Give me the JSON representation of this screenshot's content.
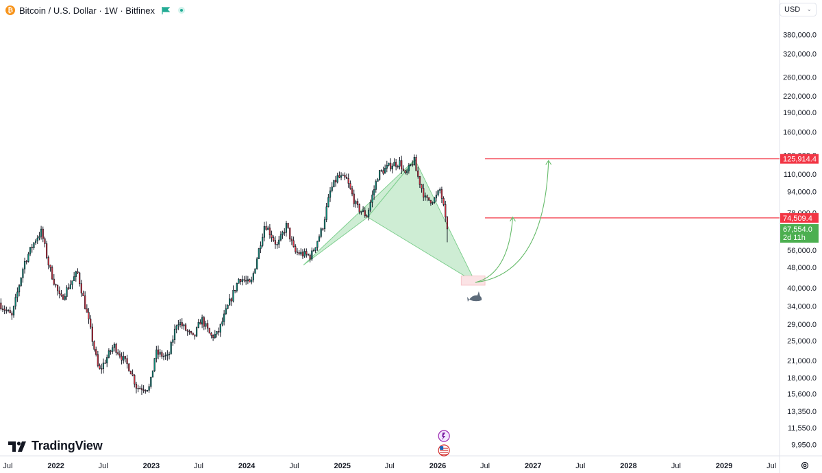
{
  "header": {
    "symbol": "Bitcoin / U.S. Dollar · 1W · Bitfinex",
    "btc_glyph": "₿",
    "icons": [
      "bitcoin-icon",
      "flag-icon",
      "live-status-icon"
    ]
  },
  "currency_selector": {
    "value": "USD"
  },
  "branding": {
    "name": "TradingView"
  },
  "colors": {
    "up": "#089981",
    "down": "#f23645",
    "pattern_fill": "#a6dfb0",
    "level_line": "#f23645",
    "current_price_bg": "#4caf50",
    "projection": "#66bb6a"
  },
  "chart_data": {
    "type": "candlestick",
    "title": "Bitcoin / U.S. Dollar · 1W · Bitfinex",
    "scale": "log",
    "xlim": [
      "2021-06-01",
      "2029-08-01"
    ],
    "ylim": [
      9000,
      430000
    ],
    "y_ticks": [
      "380,000.0",
      "320,000.0",
      "260,000.0",
      "220,000.0",
      "190,000.0",
      "160,000.0",
      "130,000.0",
      "110,000.0",
      "94,000.0",
      "78,000.0",
      "56,000.0",
      "48,000.0",
      "40,000.0",
      "34,000.0",
      "29,000.0",
      "25,000.0",
      "21,000.0",
      "18,000.0",
      "15,600.0",
      "13,350.0",
      "11,550.0",
      "9,950.0"
    ],
    "x_ticks": [
      {
        "label": "Jul",
        "date": "2021-07-01"
      },
      {
        "label": "2022",
        "date": "2022-01-01"
      },
      {
        "label": "Jul",
        "date": "2022-07-01"
      },
      {
        "label": "2023",
        "date": "2023-01-01"
      },
      {
        "label": "Jul",
        "date": "2023-07-01"
      },
      {
        "label": "2024",
        "date": "2024-01-01"
      },
      {
        "label": "Jul",
        "date": "2024-07-01"
      },
      {
        "label": "2025",
        "date": "2025-01-01"
      },
      {
        "label": "Jul",
        "date": "2025-07-01"
      },
      {
        "label": "2026",
        "date": "2026-01-01"
      },
      {
        "label": "Jul",
        "date": "2026-07-01"
      },
      {
        "label": "2027",
        "date": "2027-01-01"
      },
      {
        "label": "Jul",
        "date": "2027-07-01"
      },
      {
        "label": "2028",
        "date": "2028-01-01"
      },
      {
        "label": "Jul",
        "date": "2028-07-01"
      },
      {
        "label": "2029",
        "date": "2029-01-01"
      },
      {
        "label": "Jul",
        "date": "2029-07-01"
      }
    ],
    "price_path": [
      [
        "2021-06-01",
        35000
      ],
      [
        "2021-07-20",
        31000
      ],
      [
        "2021-09-05",
        50000
      ],
      [
        "2021-10-20",
        62000
      ],
      [
        "2021-11-10",
        66000
      ],
      [
        "2021-12-10",
        48000
      ],
      [
        "2022-01-22",
        36000
      ],
      [
        "2022-03-28",
        46000
      ],
      [
        "2022-05-12",
        29000
      ],
      [
        "2022-06-18",
        19000
      ],
      [
        "2022-08-14",
        24000
      ],
      [
        "2022-10-15",
        19500
      ],
      [
        "2022-11-10",
        16500
      ],
      [
        "2022-12-30",
        16500
      ],
      [
        "2023-01-20",
        22500
      ],
      [
        "2023-03-10",
        21500
      ],
      [
        "2023-04-14",
        30000
      ],
      [
        "2023-06-15",
        25500
      ],
      [
        "2023-07-15",
        30500
      ],
      [
        "2023-08-20",
        26000
      ],
      [
        "2023-09-15",
        26500
      ],
      [
        "2023-10-25",
        34000
      ],
      [
        "2023-12-08",
        44000
      ],
      [
        "2024-01-20",
        41000
      ],
      [
        "2024-03-14",
        71000
      ],
      [
        "2024-05-01",
        58000
      ],
      [
        "2024-06-05",
        70000
      ],
      [
        "2024-07-05",
        55000
      ],
      [
        "2024-08-05",
        54000
      ],
      [
        "2024-09-06",
        53000
      ],
      [
        "2024-10-20",
        68000
      ],
      [
        "2024-11-20",
        95000
      ],
      [
        "2024-12-17",
        107000
      ],
      [
        "2025-01-20",
        105000
      ],
      [
        "2025-02-28",
        82000
      ],
      [
        "2025-04-08",
        76000
      ],
      [
        "2025-05-22",
        110000
      ],
      [
        "2025-07-14",
        120000
      ],
      [
        "2025-08-14",
        122000
      ],
      [
        "2025-09-01",
        108000
      ],
      [
        "2025-10-06",
        125000
      ],
      [
        "2025-10-15",
        112000
      ],
      [
        "2025-11-20",
        87000
      ],
      [
        "2025-12-25",
        88000
      ],
      [
        "2026-01-14",
        96000
      ],
      [
        "2026-01-31",
        78000
      ],
      [
        "2026-02-06",
        67554
      ]
    ],
    "last_candle_low": 60000,
    "pattern": {
      "name": "harmonic (shark-style) pattern",
      "points": [
        [
          "2024-08-05",
          49000
        ],
        [
          "2025-04-08",
          75000
        ],
        [
          "2025-10-06",
          125000
        ],
        [
          "2026-05-25",
          42000
        ]
      ]
    },
    "target_zone": {
      "from": "2026-04-01",
      "to": "2026-07-01",
      "low": 41000,
      "high": 44500
    },
    "horizontal_levels": [
      {
        "value": 125914.4,
        "label": "125,914.4",
        "from": "2026-07-01"
      },
      {
        "value": 74509.4,
        "label": "74,509.4",
        "from": "2026-07-01"
      }
    ],
    "current_price": {
      "value": 67554.0,
      "label": "67,554.0",
      "countdown": "2d 11h"
    },
    "projections": [
      {
        "from": [
          "2026-05-25",
          42000
        ],
        "to": [
          "2026-10-15",
          75000
        ]
      },
      {
        "from": [
          "2026-05-25",
          42000
        ],
        "to": [
          "2027-03-01",
          124000
        ]
      }
    ]
  }
}
